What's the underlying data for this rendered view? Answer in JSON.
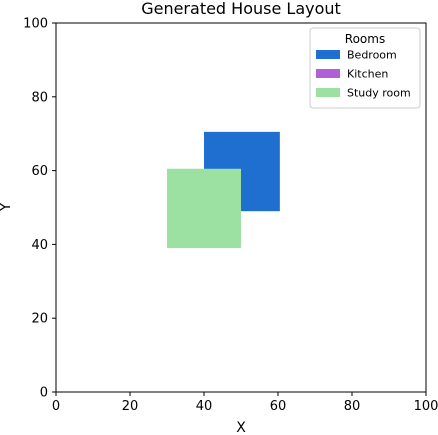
{
  "chart_data": {
    "type": "rectangles",
    "title": "Generated House Layout",
    "xlabel": "X",
    "ylabel": "Y",
    "xlim": [
      0,
      100
    ],
    "ylim": [
      0,
      100
    ],
    "xticks": [
      0,
      20,
      40,
      60,
      80,
      100
    ],
    "yticks": [
      0,
      20,
      40,
      60,
      80,
      100
    ],
    "grid": false,
    "legend": {
      "title": "Rooms",
      "placement": "top-right"
    },
    "rooms": [
      {
        "name": "Bedroom",
        "x": 40,
        "y": 49,
        "width": 20.5,
        "height": 21.5,
        "color": "#1f6fd1"
      },
      {
        "name": "Kitchen",
        "x": 45,
        "y": 48,
        "width": 5,
        "height": 10,
        "color": "#b05fd6"
      },
      {
        "name": "Study room",
        "x": 30,
        "y": 39,
        "width": 20,
        "height": 21.5,
        "color": "#9ce0a2"
      }
    ]
  }
}
